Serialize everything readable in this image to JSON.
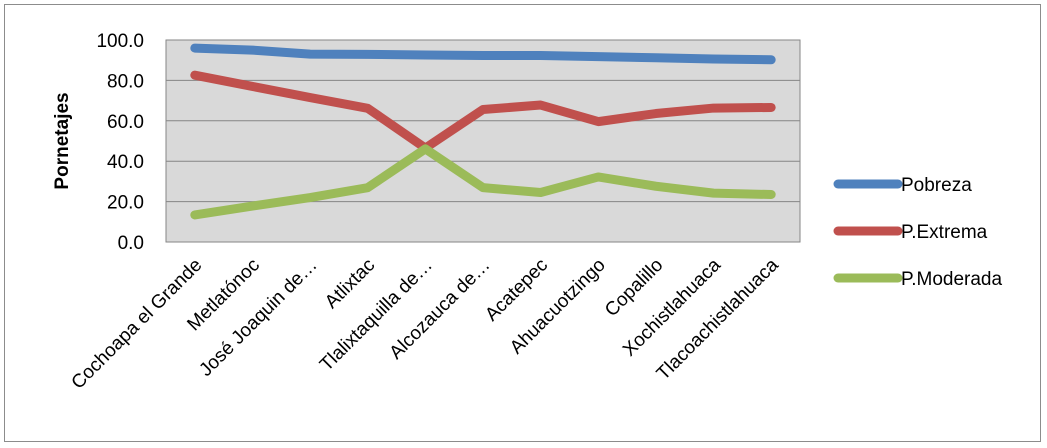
{
  "chart_data": {
    "type": "line",
    "title": "",
    "xlabel": "",
    "ylabel": "Pornetajes",
    "ylim": [
      0,
      100
    ],
    "yticks": [
      "0.0",
      "20.0",
      "40.0",
      "60.0",
      "80.0",
      "100.0"
    ],
    "grid": true,
    "legend_position": "right",
    "categories": [
      "Cochoapa el Grande",
      "Metlatónoc",
      "José Joaquin de…",
      "Atlixtac",
      "Tlalixtaquilla de…",
      "Alcozauca de…",
      "Acatepec",
      "Ahuacuotzingo",
      "Copalillo",
      "Xochistlahuaca",
      "Tlacoachistlahuaca"
    ],
    "series": [
      {
        "name": "Pobreza",
        "color": "#4f81bd",
        "values": [
          96.0,
          95.0,
          93.0,
          92.9,
          92.6,
          92.3,
          92.3,
          91.8,
          91.2,
          90.6,
          90.2
        ]
      },
      {
        "name": "P.Extrema",
        "color": "#c0504d",
        "values": [
          82.6,
          77.0,
          71.5,
          66.2,
          46.5,
          65.6,
          67.8,
          59.6,
          63.6,
          66.3,
          66.6
        ]
      },
      {
        "name": "P.Moderada",
        "color": "#9bbb59",
        "values": [
          13.4,
          17.8,
          22.0,
          26.9,
          46.1,
          26.9,
          24.5,
          32.2,
          27.6,
          24.2,
          23.5
        ]
      }
    ]
  }
}
